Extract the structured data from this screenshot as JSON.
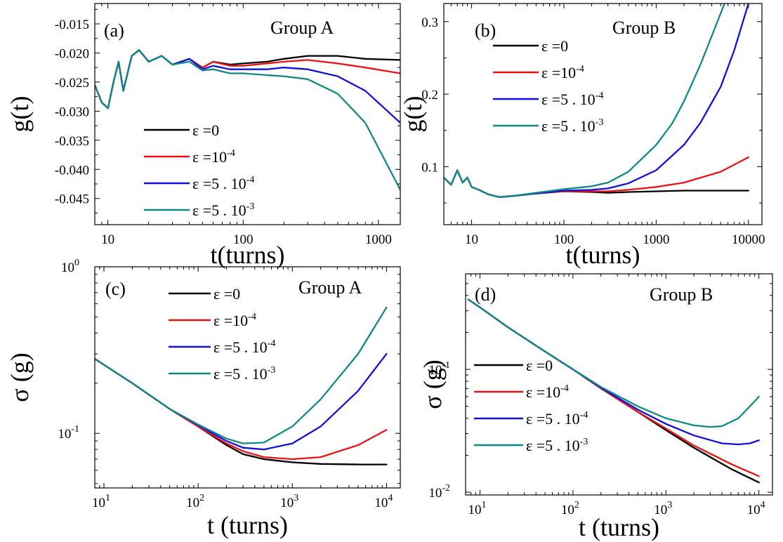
{
  "colors": {
    "eps0": "#000000",
    "eps1e-4": "#ee1111",
    "eps5e-4": "#1010dd",
    "eps5e-3": "#118888"
  },
  "legend_entries": [
    {
      "key": "eps0",
      "base": "ε =0",
      "sup": ""
    },
    {
      "key": "eps1e-4",
      "base": "ε =10",
      "sup": "-4"
    },
    {
      "key": "eps5e-4",
      "base": "ε =5 . 10",
      "sup": "-4"
    },
    {
      "key": "eps5e-3",
      "base": "ε =5 . 10",
      "sup": "-3"
    }
  ],
  "chart_data": [
    {
      "id": "a",
      "type": "line",
      "panel_label": "(a)",
      "group_label": "Group A",
      "xlabel": "t(turns)",
      "ylabel": "g(t)",
      "xscale": "log",
      "yscale": "linear",
      "xlim": [
        8,
        1450
      ],
      "ylim": [
        -0.0495,
        -0.0115
      ],
      "xticks": [
        10,
        100,
        1000
      ],
      "xtick_labels": [
        "10",
        "100",
        "1000"
      ],
      "yticks": [
        -0.015,
        -0.02,
        -0.025,
        -0.03,
        -0.035,
        -0.04,
        -0.045
      ],
      "ytick_labels": [
        "-0.015",
        "-0.020",
        "-0.025",
        "-0.030",
        "-0.035",
        "-0.040",
        "-0.045"
      ],
      "legend_position": "lower-left",
      "series": [
        {
          "key": "eps0",
          "x": [
            8,
            9,
            10,
            11,
            12,
            13,
            15,
            17,
            20,
            25,
            30,
            40,
            50,
            60,
            80,
            100,
            150,
            200,
            300,
            500,
            800,
            1450
          ],
          "y": [
            -0.0255,
            -0.0285,
            -0.0295,
            -0.025,
            -0.0215,
            -0.0265,
            -0.0205,
            -0.0195,
            -0.0215,
            -0.0205,
            -0.022,
            -0.021,
            -0.0225,
            -0.0215,
            -0.022,
            -0.0218,
            -0.0215,
            -0.021,
            -0.0205,
            -0.0205,
            -0.021,
            -0.0212
          ]
        },
        {
          "key": "eps1e-4",
          "x": [
            8,
            9,
            10,
            11,
            12,
            13,
            15,
            17,
            20,
            25,
            30,
            40,
            50,
            60,
            80,
            100,
            150,
            200,
            300,
            500,
            800,
            1450
          ],
          "y": [
            -0.0255,
            -0.0285,
            -0.0295,
            -0.025,
            -0.0215,
            -0.0265,
            -0.0205,
            -0.0195,
            -0.0215,
            -0.0205,
            -0.022,
            -0.021,
            -0.0225,
            -0.0215,
            -0.0222,
            -0.0222,
            -0.0218,
            -0.0215,
            -0.0212,
            -0.0218,
            -0.0225,
            -0.0235
          ]
        },
        {
          "key": "eps5e-4",
          "x": [
            8,
            9,
            10,
            11,
            12,
            13,
            15,
            17,
            20,
            25,
            30,
            40,
            50,
            60,
            80,
            100,
            150,
            200,
            300,
            500,
            800,
            1450
          ],
          "y": [
            -0.0255,
            -0.0285,
            -0.0295,
            -0.025,
            -0.0215,
            -0.0265,
            -0.0205,
            -0.0195,
            -0.0215,
            -0.0205,
            -0.022,
            -0.021,
            -0.0228,
            -0.0222,
            -0.0228,
            -0.0228,
            -0.0228,
            -0.0225,
            -0.0228,
            -0.024,
            -0.0265,
            -0.032
          ]
        },
        {
          "key": "eps5e-3",
          "x": [
            8,
            9,
            10,
            11,
            12,
            13,
            15,
            17,
            20,
            25,
            30,
            40,
            50,
            60,
            80,
            100,
            150,
            200,
            300,
            500,
            800,
            1450
          ],
          "y": [
            -0.0255,
            -0.0285,
            -0.0295,
            -0.025,
            -0.0215,
            -0.0265,
            -0.0205,
            -0.0195,
            -0.0215,
            -0.0205,
            -0.022,
            -0.0215,
            -0.023,
            -0.0228,
            -0.0235,
            -0.0235,
            -0.0238,
            -0.024,
            -0.0245,
            -0.027,
            -0.032,
            -0.0435
          ]
        }
      ]
    },
    {
      "id": "b",
      "type": "line",
      "panel_label": "(b)",
      "group_label": "Group B",
      "xlabel": "t(turns)",
      "ylabel": "g(t)",
      "xscale": "log",
      "yscale": "linear",
      "xlim": [
        5,
        14000
      ],
      "ylim": [
        0.02,
        0.325
      ],
      "xticks": [
        10,
        100,
        1000,
        10000
      ],
      "xtick_labels": [
        "10",
        "100",
        "1000",
        "10000"
      ],
      "yticks": [
        0.1,
        0.2,
        0.3
      ],
      "ytick_labels": [
        "0.1",
        "0.2",
        "0.3"
      ],
      "legend_position": "upper-left",
      "series": [
        {
          "key": "eps0",
          "x": [
            5,
            6,
            7,
            8,
            9,
            10,
            12,
            15,
            20,
            30,
            50,
            100,
            200,
            300,
            500,
            1000,
            2000,
            5000,
            10000
          ],
          "y": [
            0.085,
            0.075,
            0.095,
            0.078,
            0.085,
            0.072,
            0.068,
            0.062,
            0.058,
            0.06,
            0.063,
            0.066,
            0.065,
            0.064,
            0.065,
            0.066,
            0.067,
            0.067,
            0.067
          ]
        },
        {
          "key": "eps1e-4",
          "x": [
            5,
            6,
            7,
            8,
            9,
            10,
            12,
            15,
            20,
            30,
            50,
            100,
            200,
            300,
            500,
            1000,
            2000,
            5000,
            10000
          ],
          "y": [
            0.085,
            0.075,
            0.095,
            0.078,
            0.085,
            0.072,
            0.068,
            0.062,
            0.058,
            0.06,
            0.063,
            0.066,
            0.066,
            0.066,
            0.068,
            0.072,
            0.078,
            0.093,
            0.113
          ]
        },
        {
          "key": "eps5e-4",
          "x": [
            5,
            6,
            7,
            8,
            9,
            10,
            12,
            15,
            20,
            30,
            50,
            100,
            200,
            300,
            500,
            1000,
            2000,
            3000,
            5000,
            7000,
            10000
          ],
          "y": [
            0.085,
            0.075,
            0.095,
            0.078,
            0.085,
            0.072,
            0.068,
            0.062,
            0.058,
            0.06,
            0.063,
            0.067,
            0.068,
            0.07,
            0.077,
            0.095,
            0.13,
            0.16,
            0.21,
            0.26,
            0.325
          ]
        },
        {
          "key": "eps5e-3",
          "x": [
            5,
            6,
            7,
            8,
            9,
            10,
            12,
            15,
            20,
            30,
            50,
            100,
            200,
            300,
            500,
            1000,
            1500,
            2000,
            3000,
            4000,
            5500
          ],
          "y": [
            0.085,
            0.075,
            0.095,
            0.078,
            0.085,
            0.072,
            0.068,
            0.062,
            0.058,
            0.06,
            0.064,
            0.069,
            0.073,
            0.078,
            0.093,
            0.13,
            0.16,
            0.19,
            0.24,
            0.28,
            0.325
          ]
        }
      ]
    },
    {
      "id": "c",
      "type": "line",
      "panel_label": "(c)",
      "group_label": "Group A",
      "xlabel": "t (turns)",
      "ylabel": "σ (g)",
      "xscale": "log",
      "yscale": "log",
      "xlim": [
        8,
        14000
      ],
      "ylim": [
        0.047,
        1.0
      ],
      "xticks": [
        10,
        100,
        1000,
        10000
      ],
      "xtick_labels": [
        {
          "base": "10",
          "sup": "1"
        },
        {
          "base": "10",
          "sup": "2"
        },
        {
          "base": "10",
          "sup": "3"
        },
        {
          "base": "10",
          "sup": "4"
        }
      ],
      "yticks": [
        0.1,
        1.0
      ],
      "ytick_labels": [
        {
          "base": "10",
          "sup": "-1"
        },
        {
          "base": "10",
          "sup": "0"
        }
      ],
      "legend_position": "top",
      "series": [
        {
          "key": "eps0",
          "x": [
            8,
            20,
            50,
            100,
            200,
            300,
            500,
            1000,
            2000,
            5000,
            10000
          ],
          "y": [
            0.28,
            0.2,
            0.14,
            0.11,
            0.085,
            0.075,
            0.07,
            0.067,
            0.0655,
            0.065,
            0.065
          ]
        },
        {
          "key": "eps1e-4",
          "x": [
            8,
            20,
            50,
            100,
            200,
            300,
            500,
            1000,
            2000,
            5000,
            10000
          ],
          "y": [
            0.28,
            0.2,
            0.14,
            0.11,
            0.087,
            0.078,
            0.072,
            0.07,
            0.072,
            0.085,
            0.105
          ]
        },
        {
          "key": "eps5e-4",
          "x": [
            8,
            20,
            50,
            100,
            200,
            300,
            500,
            1000,
            2000,
            5000,
            10000
          ],
          "y": [
            0.28,
            0.2,
            0.14,
            0.112,
            0.09,
            0.082,
            0.08,
            0.087,
            0.11,
            0.18,
            0.3
          ]
        },
        {
          "key": "eps5e-3",
          "x": [
            8,
            20,
            50,
            100,
            200,
            300,
            500,
            1000,
            2000,
            5000,
            10000
          ],
          "y": [
            0.28,
            0.2,
            0.14,
            0.113,
            0.093,
            0.087,
            0.088,
            0.11,
            0.16,
            0.3,
            0.57
          ]
        }
      ]
    },
    {
      "id": "d",
      "type": "line",
      "panel_label": "(d)",
      "group_label": "Group B",
      "xlabel": "t (turns)",
      "ylabel": "σ (g)",
      "xscale": "log",
      "yscale": "log",
      "xlim": [
        7,
        14000
      ],
      "ylim": [
        0.0095,
        0.6
      ],
      "xticks": [
        10,
        100,
        1000,
        10000
      ],
      "xtick_labels": [
        {
          "base": "10",
          "sup": "1"
        },
        {
          "base": "10",
          "sup": "2"
        },
        {
          "base": "10",
          "sup": "3"
        },
        {
          "base": "10",
          "sup": "4"
        }
      ],
      "yticks": [
        0.01,
        0.1
      ],
      "ytick_labels": [
        {
          "base": "10",
          "sup": "-2"
        },
        {
          "base": "10",
          "sup": "-1"
        }
      ],
      "legend_position": "lower-left",
      "series": [
        {
          "key": "eps0",
          "x": [
            7.5,
            10,
            20,
            50,
            100,
            200,
            500,
            1000,
            2000,
            5000,
            10000
          ],
          "y": [
            0.37,
            0.32,
            0.22,
            0.14,
            0.1,
            0.07,
            0.045,
            0.032,
            0.023,
            0.0155,
            0.012
          ]
        },
        {
          "key": "eps1e-4",
          "x": [
            7.5,
            10,
            20,
            50,
            100,
            200,
            500,
            1000,
            2000,
            5000,
            10000
          ],
          "y": [
            0.37,
            0.32,
            0.22,
            0.14,
            0.1,
            0.07,
            0.045,
            0.033,
            0.024,
            0.017,
            0.0135
          ]
        },
        {
          "key": "eps5e-4",
          "x": [
            7.5,
            10,
            20,
            50,
            100,
            200,
            500,
            1000,
            2000,
            4000,
            6000,
            8000,
            10000
          ],
          "y": [
            0.37,
            0.32,
            0.22,
            0.14,
            0.1,
            0.071,
            0.047,
            0.036,
            0.029,
            0.025,
            0.0245,
            0.025,
            0.0265
          ]
        },
        {
          "key": "eps5e-3",
          "x": [
            7.5,
            10,
            20,
            50,
            100,
            200,
            500,
            1000,
            2000,
            3000,
            4000,
            6000,
            8000,
            10000
          ],
          "y": [
            0.37,
            0.32,
            0.22,
            0.14,
            0.1,
            0.072,
            0.05,
            0.04,
            0.035,
            0.034,
            0.0345,
            0.04,
            0.05,
            0.06
          ]
        }
      ]
    }
  ]
}
